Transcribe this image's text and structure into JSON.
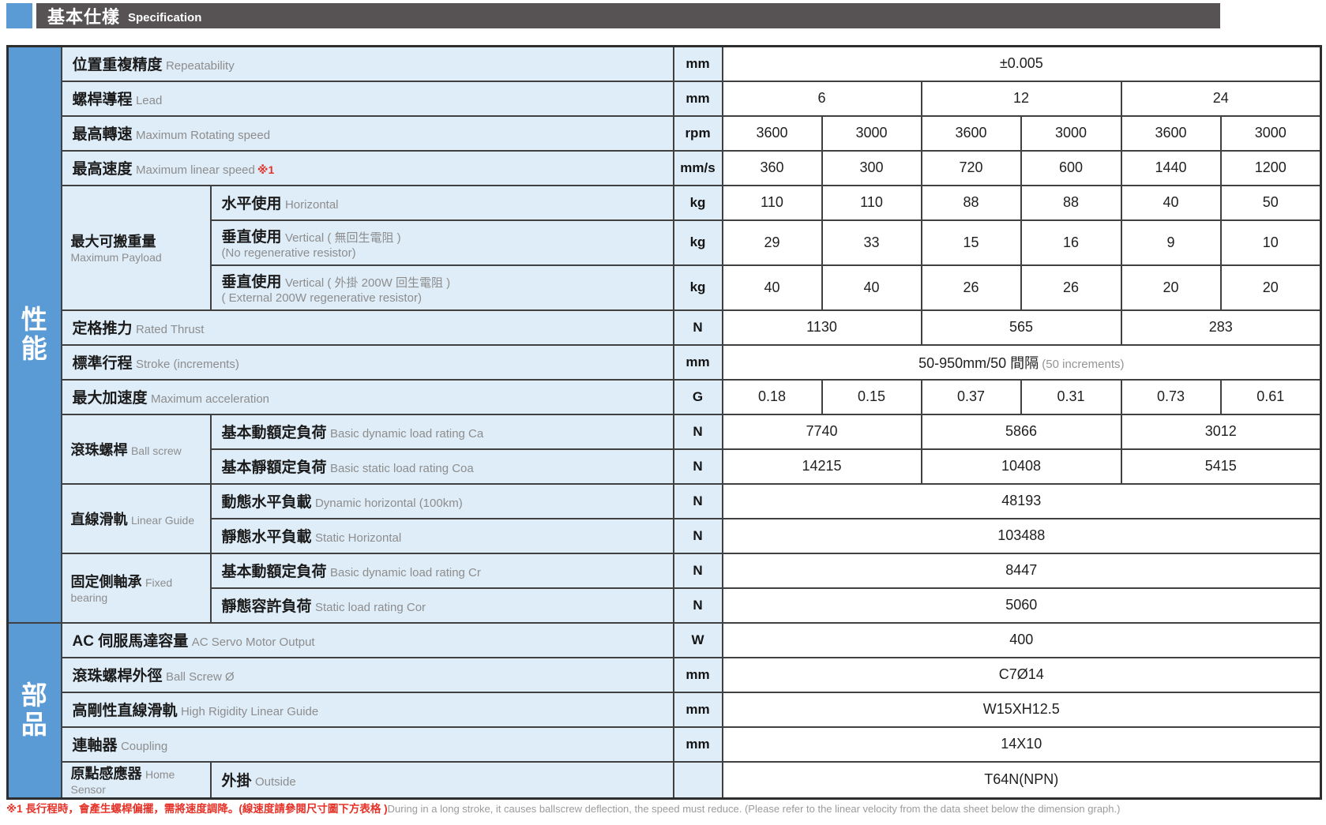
{
  "header": {
    "title_zh": "基本仕樣",
    "title_en": "Specification"
  },
  "colors": {
    "accent_blue": "#5B9BD5",
    "label_bg": "#DFEDF8",
    "bar_gray": "#575354",
    "note_red": "#E53228",
    "en_gray": "#8D8D8D"
  },
  "sidebar": [
    {
      "label": "性能",
      "rows": 16
    },
    {
      "label": "部品",
      "rows": 5
    }
  ],
  "table": {
    "rows": [
      {
        "label": {
          "zh": "位置重複精度",
          "en": "Repeatability"
        },
        "unit": "mm",
        "values": [
          {
            "t": "±0.005",
            "span": 6
          }
        ]
      },
      {
        "label": {
          "zh": "螺桿導程",
          "en": "Lead"
        },
        "unit": "mm",
        "values": [
          {
            "t": "6",
            "span": 2
          },
          {
            "t": "12",
            "span": 2
          },
          {
            "t": "24",
            "span": 2
          }
        ]
      },
      {
        "label": {
          "zh": "最高轉速",
          "en": "Maximum Rotating speed"
        },
        "unit": "rpm",
        "values": [
          {
            "t": "3600"
          },
          {
            "t": "3000"
          },
          {
            "t": "3600"
          },
          {
            "t": "3000"
          },
          {
            "t": "3600"
          },
          {
            "t": "3000"
          }
        ]
      },
      {
        "label": {
          "zh": "最高速度",
          "en": "Maximum linear speed",
          "note": "※1"
        },
        "unit": "mm/s",
        "values": [
          {
            "t": "360"
          },
          {
            "t": "300"
          },
          {
            "t": "720"
          },
          {
            "t": "600"
          },
          {
            "t": "1440"
          },
          {
            "t": "1200"
          }
        ]
      },
      {
        "group": {
          "zh": "最大可搬重量",
          "en": "Maximum Payload",
          "rows": 3
        },
        "sub": {
          "zh": "水平使用",
          "en": "Horizontal"
        },
        "unit": "kg",
        "values": [
          {
            "t": "110"
          },
          {
            "t": "110"
          },
          {
            "t": "88"
          },
          {
            "t": "88"
          },
          {
            "t": "40"
          },
          {
            "t": "50"
          }
        ]
      },
      {
        "sub": {
          "zh": "垂直使用",
          "en": "Vertical ( 無回生電阻 )",
          "line2": "(No regenerative resistor)"
        },
        "tall": true,
        "unit": "kg",
        "values": [
          {
            "t": "29"
          },
          {
            "t": "33"
          },
          {
            "t": "15"
          },
          {
            "t": "16"
          },
          {
            "t": "9"
          },
          {
            "t": "10"
          }
        ]
      },
      {
        "sub": {
          "zh": "垂直使用",
          "en": "Vertical ( 外掛 200W 回生電阻 )",
          "line2": "( External 200W regenerative resistor)"
        },
        "tall": true,
        "unit": "kg",
        "values": [
          {
            "t": "40"
          },
          {
            "t": "40"
          },
          {
            "t": "26"
          },
          {
            "t": "26"
          },
          {
            "t": "20"
          },
          {
            "t": "20"
          }
        ]
      },
      {
        "label": {
          "zh": "定格推力",
          "en": "Rated Thrust"
        },
        "unit": "N",
        "values": [
          {
            "t": "1130",
            "span": 2
          },
          {
            "t": "565",
            "span": 2
          },
          {
            "t": "283",
            "span": 2
          }
        ]
      },
      {
        "label": {
          "zh": "標準行程",
          "en": "Stroke (increments)"
        },
        "unit": "mm",
        "values": [
          {
            "t": "50-950mm/50 間隔",
            "gray": " (50 increments)",
            "span": 6
          }
        ]
      },
      {
        "label": {
          "zh": "最大加速度",
          "en": "Maximum acceleration"
        },
        "unit": "G",
        "values": [
          {
            "t": "0.18"
          },
          {
            "t": "0.15"
          },
          {
            "t": "0.37"
          },
          {
            "t": "0.31"
          },
          {
            "t": "0.73"
          },
          {
            "t": "0.61"
          }
        ]
      },
      {
        "group": {
          "zh": "滾珠螺桿",
          "en": "Ball screw",
          "rows": 2
        },
        "sub": {
          "zh": "基本動額定負荷",
          "en": "Basic dynamic load rating Ca"
        },
        "unit": "N",
        "values": [
          {
            "t": "7740",
            "span": 2
          },
          {
            "t": "5866",
            "span": 2
          },
          {
            "t": "3012",
            "span": 2
          }
        ]
      },
      {
        "sub": {
          "zh": "基本靜額定負荷",
          "en": "Basic static load rating Coa"
        },
        "unit": "N",
        "values": [
          {
            "t": "14215",
            "span": 2
          },
          {
            "t": "10408",
            "span": 2
          },
          {
            "t": "5415",
            "span": 2
          }
        ]
      },
      {
        "group": {
          "zh": "直線滑軌",
          "en": "Linear Guide",
          "rows": 2
        },
        "sub": {
          "zh": "動態水平負載",
          "en": "Dynamic horizontal (100km)"
        },
        "unit": "N",
        "values": [
          {
            "t": "48193",
            "span": 6
          }
        ]
      },
      {
        "sub": {
          "zh": "靜態水平負載",
          "en": "Static Horizontal"
        },
        "unit": "N",
        "values": [
          {
            "t": "103488",
            "span": 6
          }
        ]
      },
      {
        "group": {
          "zh": "固定側軸承",
          "en": "Fixed bearing",
          "rows": 2
        },
        "sub": {
          "zh": "基本動額定負荷",
          "en": "Basic dynamic load rating Cr"
        },
        "unit": "N",
        "values": [
          {
            "t": "8447",
            "span": 6
          }
        ]
      },
      {
        "sub": {
          "zh": "靜態容許負荷",
          "en": "Static load rating Cor"
        },
        "unit": "N",
        "values": [
          {
            "t": "5060",
            "span": 6
          }
        ]
      },
      {
        "label": {
          "zh": "AC 伺服馬達容量",
          "en": "AC Servo Motor Output"
        },
        "unit": "W",
        "values": [
          {
            "t": "400",
            "span": 6
          }
        ]
      },
      {
        "label": {
          "zh": "滾珠螺桿外徑",
          "en": "Ball Screw Ø"
        },
        "unit": "mm",
        "values": [
          {
            "t": "C7Ø14",
            "span": 6
          }
        ]
      },
      {
        "label": {
          "zh": "高剛性直線滑軌",
          "en": "High Rigidity Linear Guide"
        },
        "unit": "mm",
        "values": [
          {
            "t": "W15XH12.5",
            "span": 6
          }
        ]
      },
      {
        "label": {
          "zh": "連軸器",
          "en": "Coupling"
        },
        "unit": "mm",
        "values": [
          {
            "t": "14X10",
            "span": 6
          }
        ]
      },
      {
        "group": {
          "zh": "原點感應器",
          "en": "Home Sensor",
          "rows": 1
        },
        "sub": {
          "zh": "外掛",
          "en": "Outside"
        },
        "unit": "",
        "values": [
          {
            "t": "T64N(NPN)",
            "span": 6
          }
        ]
      }
    ]
  },
  "footnote": {
    "red": "※1 長行程時，會產生螺桿偏擺，需將速度調降。(線速度請參閱尺寸圖下方表格 )",
    "gray": "During in a long stroke, it causes ballscrew deflection, the speed must reduce. (Please refer to the linear velocity from the data sheet below the dimension graph.)"
  }
}
